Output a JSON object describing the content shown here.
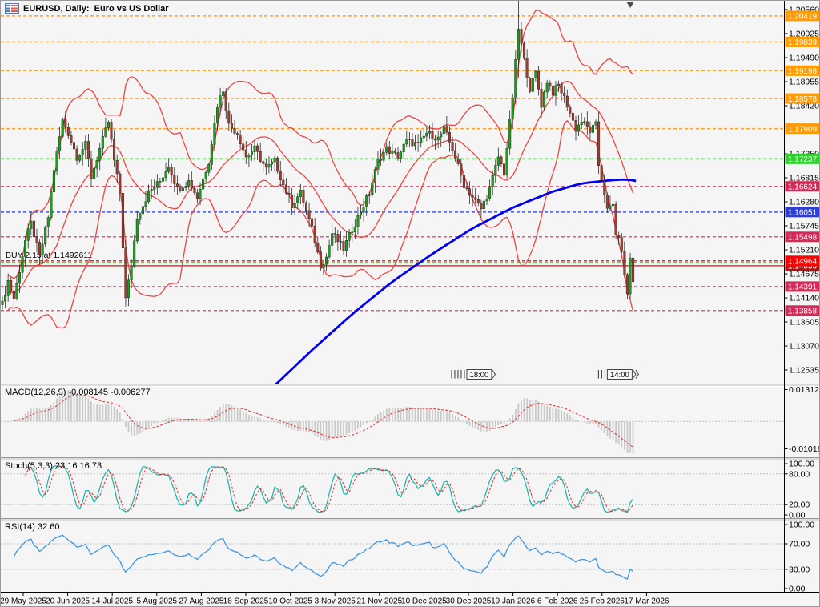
{
  "window": {
    "title": "EURUSD, Daily:  Euro vs US Dollar"
  },
  "chart_data": {
    "type": "candlestick",
    "symbol": "EURUSD",
    "timeframe": "Daily",
    "description": "Euro vs US Dollar",
    "order": {
      "label": "BUY 2.15 at 1.1492611",
      "price": 1.1492611
    },
    "price_axis": {
      "ticks": [
        "1.20560",
        "1.20025",
        "1.19490",
        "1.18955",
        "1.18420",
        "1.17350",
        "1.16815",
        "1.16280",
        "1.15745",
        "1.15210",
        "1.14675",
        "1.14140",
        "1.13605",
        "1.13070",
        "1.12535"
      ],
      "badges": [
        {
          "price": 1.20419,
          "label": "1.20419",
          "color": "orange"
        },
        {
          "price": 1.19839,
          "label": "1.19839",
          "color": "orange"
        },
        {
          "price": 1.19198,
          "label": "1.19198",
          "color": "orange"
        },
        {
          "price": 1.18578,
          "label": "1.18578",
          "color": "orange"
        },
        {
          "price": 1.17909,
          "label": "1.17909",
          "color": "orange"
        },
        {
          "price": 1.17237,
          "label": "1.17237",
          "color": "green"
        },
        {
          "price": 1.16624,
          "label": "1.16624",
          "color": "crimson"
        },
        {
          "price": 1.16051,
          "label": "1.16051",
          "color": "blue"
        },
        {
          "price": 1.15498,
          "label": "1.15498",
          "color": "crimson"
        },
        {
          "price": 1.14855,
          "label": "1.14855",
          "color": "darkred"
        },
        {
          "price": 1.14964,
          "label": "1.14964",
          "color": "red"
        },
        {
          "price": 1.14391,
          "label": "1.14391",
          "color": "crimson"
        },
        {
          "price": 1.13858,
          "label": "1.13858",
          "color": "crimson"
        }
      ]
    },
    "hlines": [
      {
        "price": 1.20419,
        "color": "orange",
        "style": "dash"
      },
      {
        "price": 1.19839,
        "color": "orange",
        "style": "dash"
      },
      {
        "price": 1.19198,
        "color": "orange",
        "style": "dash"
      },
      {
        "price": 1.18578,
        "color": "orange",
        "style": "dash"
      },
      {
        "price": 1.17909,
        "color": "orange",
        "style": "dash"
      },
      {
        "price": 1.17237,
        "color": "green",
        "style": "dash"
      },
      {
        "price": 1.16624,
        "color": "crimson",
        "style": "dash"
      },
      {
        "price": 1.16051,
        "color": "blue",
        "style": "dash"
      },
      {
        "price": 1.15498,
        "color": "crimson",
        "style": "dash"
      },
      {
        "price": 1.14964,
        "color": "red",
        "style": "dash"
      },
      {
        "price": 1.1492611,
        "color": "limegreen",
        "style": "dash"
      },
      {
        "price": 1.14855,
        "color": "solidred",
        "style": "solid"
      },
      {
        "price": 1.14391,
        "color": "crimson",
        "style": "dash"
      },
      {
        "price": 1.13858,
        "color": "crimson",
        "style": "dash"
      }
    ],
    "bars_total": 221,
    "price_path": [
      [
        0,
        1.14
      ],
      [
        2,
        1.1452
      ],
      [
        4,
        1.1412
      ],
      [
        6,
        1.1476
      ],
      [
        8,
        1.1541
      ],
      [
        10,
        1.158
      ],
      [
        13,
        1.1505
      ],
      [
        16,
        1.1594
      ],
      [
        18,
        1.1701
      ],
      [
        21,
        1.1808
      ],
      [
        23,
        1.1781
      ],
      [
        26,
        1.1728
      ],
      [
        29,
        1.1755
      ],
      [
        31,
        1.1683
      ],
      [
        34,
        1.1746
      ],
      [
        37,
        1.1806
      ],
      [
        39,
        1.1719
      ],
      [
        41,
        1.1648
      ],
      [
        43,
        1.1411
      ],
      [
        45,
        1.1487
      ],
      [
        47,
        1.1594
      ],
      [
        51,
        1.1648
      ],
      [
        55,
        1.1674
      ],
      [
        58,
        1.171
      ],
      [
        61,
        1.1657
      ],
      [
        65,
        1.1674
      ],
      [
        68,
        1.1638
      ],
      [
        72,
        1.1719
      ],
      [
        75,
        1.1844
      ],
      [
        77,
        1.1878
      ],
      [
        79,
        1.1799
      ],
      [
        82,
        1.1781
      ],
      [
        85,
        1.1728
      ],
      [
        88,
        1.1746
      ],
      [
        92,
        1.1701
      ],
      [
        95,
        1.1719
      ],
      [
        98,
        1.1666
      ],
      [
        101,
        1.1621
      ],
      [
        104,
        1.1648
      ],
      [
        108,
        1.1567
      ],
      [
        111,
        1.1487
      ],
      [
        113,
        1.1505
      ],
      [
        115,
        1.1558
      ],
      [
        119,
        1.1523
      ],
      [
        122,
        1.1567
      ],
      [
        126,
        1.1621
      ],
      [
        128,
        1.1648
      ],
      [
        131,
        1.1719
      ],
      [
        134,
        1.1746
      ],
      [
        138,
        1.1728
      ],
      [
        141,
        1.1764
      ],
      [
        145,
        1.1755
      ],
      [
        148,
        1.1781
      ],
      [
        152,
        1.1769
      ],
      [
        154,
        1.179
      ],
      [
        157,
        1.1746
      ],
      [
        161,
        1.1666
      ],
      [
        164,
        1.1638
      ],
      [
        167,
        1.1612
      ],
      [
        170,
        1.1657
      ],
      [
        173,
        1.1728
      ],
      [
        175,
        1.1692
      ],
      [
        178,
        1.1862
      ],
      [
        180,
        1.2013
      ],
      [
        182,
        1.1942
      ],
      [
        184,
        1.188
      ],
      [
        186,
        1.1915
      ],
      [
        188,
        1.1844
      ],
      [
        190,
        1.1897
      ],
      [
        192,
        1.1871
      ],
      [
        194,
        1.1888
      ],
      [
        197,
        1.1844
      ],
      [
        199,
        1.1808
      ],
      [
        200,
        1.179
      ],
      [
        202,
        1.1808
      ],
      [
        205,
        1.1786
      ],
      [
        207,
        1.1799
      ],
      [
        208,
        1.171
      ],
      [
        210,
        1.1648
      ],
      [
        211,
        1.1608
      ],
      [
        213,
        1.1621
      ],
      [
        214,
        1.1558
      ],
      [
        216,
        1.1523
      ],
      [
        217,
        1.146
      ],
      [
        218,
        1.1425
      ],
      [
        219,
        1.1501
      ],
      [
        220,
        1.145
      ]
    ],
    "wick_overrides": {
      "180": [
        1.2076,
        1.1905
      ]
    },
    "ma_blue": [
      [
        92,
        1.1213
      ],
      [
        106,
        1.1298
      ],
      [
        120,
        1.1378
      ],
      [
        134,
        1.145
      ],
      [
        148,
        1.1512
      ],
      [
        162,
        1.1569
      ],
      [
        176,
        1.1615
      ],
      [
        190,
        1.1651
      ],
      [
        200,
        1.1669
      ],
      [
        210,
        1.1676
      ],
      [
        216,
        1.1678
      ],
      [
        221,
        1.1672
      ]
    ],
    "bollinger": {
      "period": 20,
      "deviation": 2
    },
    "session_tags": [
      {
        "label": "18:00",
        "bar": 162,
        "ticks": 5,
        "chevrons": 1
      },
      {
        "label": "14:00",
        "bar": 211,
        "ticks": 3,
        "chevrons": 2
      }
    ],
    "shift_marker_bar": 219,
    "x_axis_dates": [
      "29 May 2025",
      "20 Jun 2025",
      "14 Jul 2025",
      "5 Aug 2025",
      "27 Aug 2025",
      "18 Sep 2025",
      "10 Oct 2025",
      "3 Nov 2025",
      "21 Nov 2025",
      "10 Dec 2025",
      "30 Dec 2025",
      "19 Jan 2026",
      "6 Feb 2026",
      "25 Feb 2026",
      "17 Mar 2026"
    ],
    "panes": {
      "macd": {
        "label": "MACD(12,26,9) -0.008145 -0.006277",
        "fast": 12,
        "slow": 26,
        "signal": 9,
        "value": -0.008145,
        "signal_value": -0.006277,
        "axis_max": "0.013123",
        "axis_min": "-0.010166"
      },
      "stoch": {
        "label": "Stoch(5,3,3) 23.16 16.73",
        "k": 5,
        "d": 3,
        "slowing": 3,
        "value": 23.16,
        "signal_value": 16.73,
        "axis_ticks": [
          [
            100,
            "100.00"
          ],
          [
            80,
            "80.00"
          ],
          [
            20,
            "20.00"
          ],
          [
            0,
            "0.00"
          ]
        ],
        "levels": [
          80,
          20
        ]
      },
      "rsi": {
        "label": "RSI(14) 32.60",
        "period": 14,
        "value": 32.6,
        "axis_ticks": [
          [
            100,
            "100.00"
          ],
          [
            70,
            "70.00"
          ],
          [
            30,
            "30.00"
          ],
          [
            0,
            "0.00"
          ]
        ],
        "levels": [
          70,
          30
        ]
      }
    },
    "colors": {
      "bg": "#f5f5f5",
      "bull": "#18a018",
      "bear": "#a33b2e",
      "wick": "#2a2a2a",
      "candle_edge": "#1b1b1b",
      "bands": "#ee4444",
      "ma": "#0000ee",
      "orange": "#ffa12b",
      "green": "#3fe03f",
      "crimson": "#e1597d",
      "blue": "#5b6cf0",
      "red": "#ff2020",
      "limegreen": "#3fe03f",
      "solidred": "#f03030",
      "badge_orange": "#ff9b00",
      "badge_green": "#2fd12f",
      "badge_crimson": "#d42a5a",
      "badge_blue": "#2b3dd6",
      "badge_red": "#ff0000",
      "badge_darkred": "#b21010",
      "macd_hist": "#c9c9c9",
      "macd_signal": "#e23a3a",
      "stoch_k": "#1fb8b0",
      "stoch_d": "#e23a3a",
      "rsi": "#4197e3",
      "level": "#c0c0c0",
      "axis_text": "#000000"
    }
  }
}
